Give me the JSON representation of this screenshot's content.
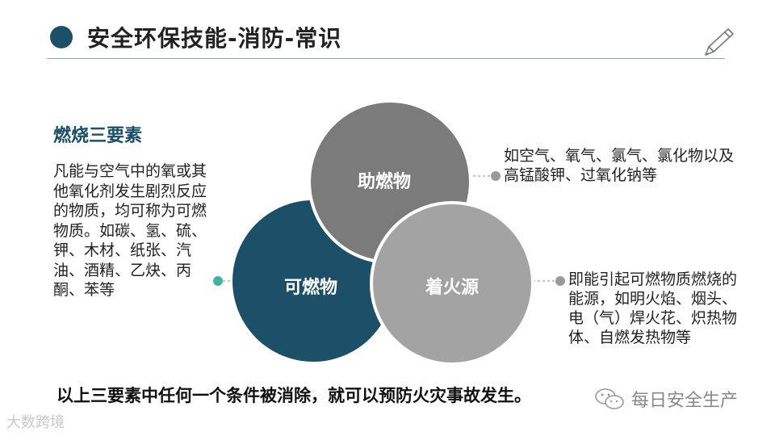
{
  "header": {
    "title": "安全环保技能-消防-常识"
  },
  "left_panel": {
    "heading": "燃烧三要素",
    "description": "凡能与空气中的氧或其他氧化剂发生剧烈反应的物质，均可称为可燃物质。如碳、氢、硫、钾、木材、纸张、汽油、酒精、乙炔、丙酮、苯等"
  },
  "venn": {
    "circles": [
      {
        "label": "助燃物",
        "color": "#7b7b7b"
      },
      {
        "label": "可燃物",
        "color": "#1b5068"
      },
      {
        "label": "着火源",
        "color": "#a3a3a3"
      }
    ],
    "dot_color_teal": "#3fb3a5",
    "dot_color_gray": "#9a9a9a"
  },
  "right_panel": {
    "oxidizer_note": "如空气、氧气、氯气、氯化物以及高锰酸钾、过氧化钠等",
    "ignition_note": "即能引起可燃物质燃烧的能源，如明火焰、烟头、电（气）焊火花、炽热物体、自燃发热物等"
  },
  "footer": {
    "conclusion": "以上三要素中任何一个条件被消除，就可以预防火灾事故发生。",
    "watermark_left": "大数跨境",
    "watermark_right": "每日安全生产"
  },
  "colors": {
    "accent": "#1b5068",
    "rule": "#9aa0a4"
  }
}
